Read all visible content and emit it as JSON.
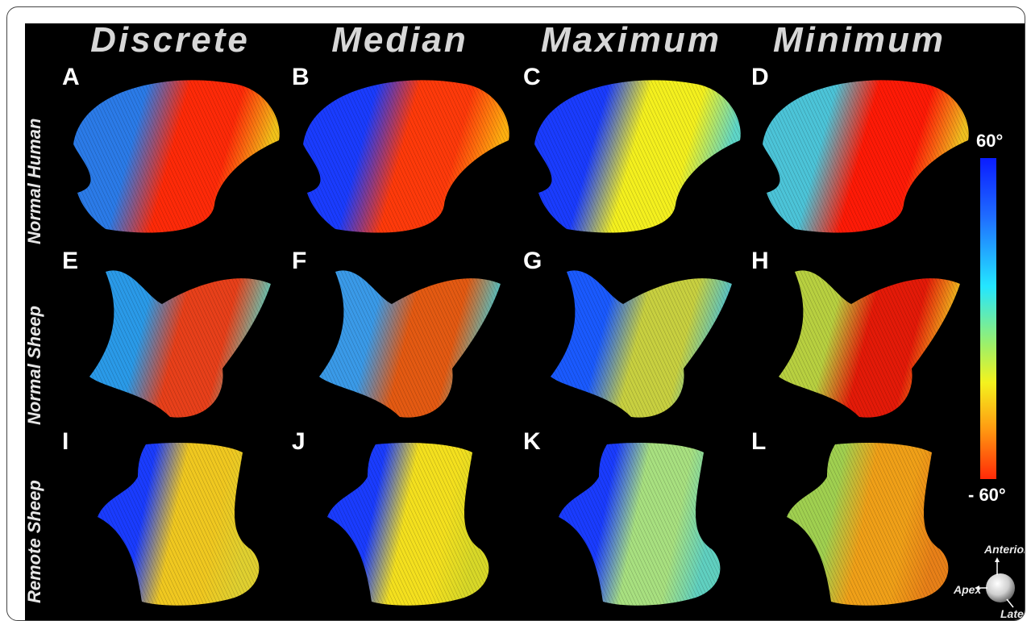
{
  "columns": [
    "Discrete",
    "Median",
    "Maximum",
    "Minimum"
  ],
  "rows": [
    "Normal Human",
    "Normal Sheep",
    "Remote Sheep"
  ],
  "panels": [
    {
      "letter": "A"
    },
    {
      "letter": "B"
    },
    {
      "letter": "C"
    },
    {
      "letter": "D"
    },
    {
      "letter": "E"
    },
    {
      "letter": "F"
    },
    {
      "letter": "G"
    },
    {
      "letter": "H"
    },
    {
      "letter": "I"
    },
    {
      "letter": "J"
    },
    {
      "letter": "K"
    },
    {
      "letter": "L"
    }
  ],
  "colorbar": {
    "top_label": "60°",
    "bottom_label": "- 60°",
    "colors": [
      "#0a1cff",
      "#24e6ff",
      "#f4f21e",
      "#ff2a08"
    ]
  },
  "orientation": {
    "anterior": "Anterior",
    "apex": "Apex",
    "lateral": "Lateral"
  }
}
